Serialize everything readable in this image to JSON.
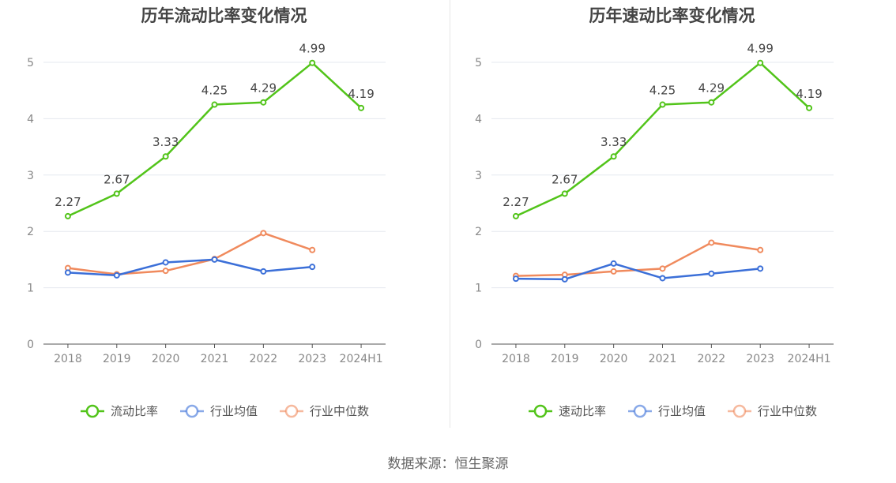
{
  "source_label": "数据来源：恒生聚源",
  "chart_data": [
    {
      "type": "line",
      "title": "历年流动比率变化情况",
      "xlabel": "",
      "ylabel": "",
      "categories": [
        "2018",
        "2019",
        "2020",
        "2021",
        "2022",
        "2023",
        "2024H1"
      ],
      "ylim": [
        0,
        5
      ],
      "yticks": [
        0,
        1,
        2,
        3,
        4,
        5
      ],
      "grid": true,
      "legend_position": "bottom",
      "series": [
        {
          "name": "流动比率",
          "color": "#52c41a",
          "values": [
            2.27,
            2.67,
            3.33,
            4.25,
            4.29,
            4.99,
            4.19
          ],
          "labels": [
            "2.27",
            "2.67",
            "3.33",
            "4.25",
            "4.29",
            "4.99",
            "4.19"
          ]
        },
        {
          "name": "行业均值",
          "color": "#3b6fd8",
          "values": [
            1.27,
            1.22,
            1.45,
            1.5,
            1.29,
            1.37,
            null
          ]
        },
        {
          "name": "行业中位数",
          "color": "#f08a5d",
          "values": [
            1.35,
            1.24,
            1.3,
            1.51,
            1.97,
            1.67,
            null
          ]
        }
      ]
    },
    {
      "type": "line",
      "title": "历年速动比率变化情况",
      "xlabel": "",
      "ylabel": "",
      "categories": [
        "2018",
        "2019",
        "2020",
        "2021",
        "2022",
        "2023",
        "2024H1"
      ],
      "ylim": [
        0,
        5
      ],
      "yticks": [
        0,
        1,
        2,
        3,
        4,
        5
      ],
      "grid": true,
      "legend_position": "bottom",
      "series": [
        {
          "name": "速动比率",
          "color": "#52c41a",
          "values": [
            2.27,
            2.67,
            3.33,
            4.25,
            4.29,
            4.99,
            4.19
          ],
          "labels": [
            "2.27",
            "2.67",
            "3.33",
            "4.25",
            "4.29",
            "4.99",
            "4.19"
          ]
        },
        {
          "name": "行业均值",
          "color": "#3b6fd8",
          "values": [
            1.16,
            1.15,
            1.43,
            1.17,
            1.25,
            1.34,
            null
          ]
        },
        {
          "name": "行业中位数",
          "color": "#f08a5d",
          "values": [
            1.21,
            1.23,
            1.29,
            1.34,
            1.8,
            1.67,
            null
          ]
        }
      ]
    }
  ]
}
